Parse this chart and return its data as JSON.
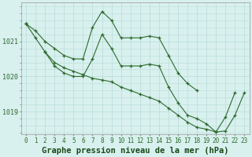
{
  "hours": [
    0,
    1,
    2,
    3,
    4,
    5,
    6,
    7,
    8,
    9,
    10,
    11,
    12,
    13,
    14,
    15,
    16,
    17,
    18,
    19,
    20,
    21,
    22,
    23
  ],
  "line1": [
    1021.5,
    1021.3,
    1021.0,
    1020.8,
    1020.6,
    1020.5,
    1020.5,
    1021.4,
    1021.85,
    1021.6,
    1021.1,
    1021.1,
    1021.1,
    1021.15,
    1021.1,
    1020.6,
    1020.1,
    1019.8,
    1019.6,
    null,
    null,
    null,
    null,
    null
  ],
  "line2": [
    1021.5,
    null,
    1020.7,
    1020.3,
    1020.1,
    1020.0,
    1020.0,
    1020.5,
    1021.2,
    1020.8,
    1020.3,
    1020.3,
    1020.3,
    1020.35,
    1020.3,
    1019.7,
    1019.25,
    1018.9,
    1018.8,
    1018.65,
    1018.42,
    1018.85,
    1019.55,
    null
  ],
  "line3": [
    1021.5,
    1021.1,
    1020.7,
    1020.4,
    1020.25,
    1020.15,
    1020.05,
    1019.95,
    1019.9,
    1019.85,
    1019.7,
    1019.6,
    1019.5,
    1019.4,
    1019.3,
    1019.1,
    1018.9,
    1018.7,
    1018.55,
    1018.5,
    1018.42,
    1018.45,
    1018.9,
    1019.55
  ],
  "line_color": "#2d6a2d",
  "bg_color": "#d8f0ee",
  "grid_color": "#b8ddd8",
  "title": "Graphe pression niveau de la mer (hPa)",
  "ylim_min": 1018.35,
  "ylim_max": 1022.1,
  "ytick_positions": [
    1019.0,
    1020.0,
    1021.0
  ],
  "ytick_labels": [
    "1019",
    "1020",
    "1021"
  ],
  "xlabel_color": "#2d6a2d",
  "title_color": "#1a4a1a",
  "title_fontsize": 7.5,
  "tick_fontsize": 5.5,
  "ytick_fontsize": 6.0
}
